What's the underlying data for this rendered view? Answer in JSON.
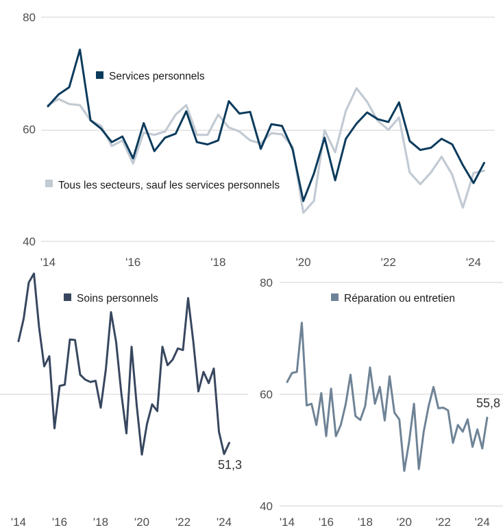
{
  "colors": {
    "services": "#0b3b5c",
    "autres": "#c2cad3",
    "soins": "#38475f",
    "reparation": "#6f8396",
    "grid": "#d0d0d0"
  },
  "chart_data": [
    {
      "type": "line",
      "x_ticks": [
        "'14",
        "'16",
        "'18",
        "'20",
        "'22",
        "'24"
      ],
      "y_ticks": [
        "80",
        "60",
        "40"
      ],
      "ylim": [
        40,
        80
      ],
      "xlim": [
        2014.0,
        2024.5
      ],
      "grid": "horizontal",
      "series": [
        {
          "name": "Services personnels",
          "color_key": "services",
          "x": [
            2014.0,
            2014.25,
            2014.5,
            2014.75,
            2015.0,
            2015.25,
            2015.5,
            2015.75,
            2016.0,
            2016.25,
            2016.5,
            2016.75,
            2017.0,
            2017.25,
            2017.5,
            2017.75,
            2018.0,
            2018.25,
            2018.5,
            2018.75,
            2019.0,
            2019.25,
            2019.5,
            2019.75,
            2020.0,
            2020.25,
            2020.5,
            2020.75,
            2021.0,
            2021.25,
            2021.5,
            2021.75,
            2022.0,
            2022.25,
            2022.5,
            2022.75,
            2023.0,
            2023.25,
            2023.5,
            2023.75,
            2024.0,
            2024.25
          ],
          "values": [
            64.1,
            66.2,
            67.5,
            74.2,
            61.6,
            60.1,
            57.7,
            58.7,
            54.8,
            61.1,
            56.1,
            58.5,
            59.2,
            63.2,
            57.7,
            57.3,
            58.0,
            65.0,
            62.8,
            63.1,
            56.5,
            60.9,
            60.6,
            56.4,
            47.2,
            52.1,
            58.5,
            50.9,
            58.3,
            61.0,
            63.0,
            61.8,
            61.3,
            64.8,
            57.9,
            56.3,
            56.7,
            58.3,
            57.3,
            53.6,
            50.4,
            54.0
          ]
        },
        {
          "name": "Tous les secteurs, sauf les services personnels",
          "color_key": "autres",
          "x": [
            2014.0,
            2014.25,
            2014.5,
            2014.75,
            2015.0,
            2015.25,
            2015.5,
            2015.75,
            2016.0,
            2016.25,
            2016.5,
            2016.75,
            2017.0,
            2017.25,
            2017.5,
            2017.75,
            2018.0,
            2018.25,
            2018.5,
            2018.75,
            2019.0,
            2019.25,
            2019.5,
            2019.75,
            2020.0,
            2020.25,
            2020.5,
            2020.75,
            2021.0,
            2021.25,
            2021.5,
            2021.75,
            2022.0,
            2022.25,
            2022.5,
            2022.75,
            2023.0,
            2023.25,
            2023.5,
            2023.75,
            2024.0,
            2024.25
          ],
          "values": [
            64.3,
            65.4,
            64.5,
            64.3,
            61.6,
            60.6,
            57.0,
            58.0,
            53.9,
            59.4,
            59.0,
            59.6,
            62.6,
            64.3,
            59.0,
            59.0,
            62.6,
            60.3,
            59.6,
            58.0,
            57.5,
            59.3,
            59.1,
            56.9,
            45.1,
            47.2,
            59.8,
            55.9,
            63.3,
            67.3,
            64.9,
            61.5,
            59.9,
            62.1,
            52.3,
            50.2,
            52.3,
            55.1,
            51.9,
            46.0,
            52.2,
            52.6
          ]
        }
      ]
    },
    {
      "type": "line",
      "x_ticks": [
        "'14",
        "'16",
        "'18",
        "'20",
        "'22",
        "'24"
      ],
      "ylim": [
        40,
        80
      ],
      "xlim": [
        2014.0,
        2024.5
      ],
      "grid": "horizontal",
      "end_label": "51,3",
      "series": [
        {
          "name": "Soins personnels",
          "color_key": "soins",
          "x": [
            2014.0,
            2014.25,
            2014.5,
            2014.75,
            2015.0,
            2015.25,
            2015.5,
            2015.75,
            2016.0,
            2016.25,
            2016.5,
            2016.75,
            2017.0,
            2017.25,
            2017.5,
            2017.75,
            2018.0,
            2018.25,
            2018.5,
            2018.75,
            2019.0,
            2019.25,
            2019.5,
            2019.75,
            2020.0,
            2020.25,
            2020.5,
            2020.75,
            2021.0,
            2021.25,
            2021.5,
            2021.75,
            2022.0,
            2022.25,
            2022.5,
            2022.75,
            2023.0,
            2023.25,
            2023.5,
            2023.75,
            2024.0,
            2024.25
          ],
          "values": [
            69.5,
            73.5,
            80.0,
            81.6,
            72.0,
            65.0,
            66.8,
            53.9,
            61.5,
            61.7,
            69.8,
            69.7,
            63.5,
            62.6,
            62.2,
            62.4,
            57.6,
            64.5,
            74.7,
            69.3,
            60.2,
            53.0,
            68.5,
            58.0,
            49.2,
            54.7,
            58.2,
            57.0,
            68.5,
            65.2,
            66.2,
            68.2,
            67.9,
            77.2,
            69.5,
            60.5,
            64.0,
            62.0,
            64.6,
            53.3,
            49.3,
            51.3
          ]
        }
      ]
    },
    {
      "type": "line",
      "x_ticks": [
        "'14",
        "'16",
        "'18",
        "'20",
        "'22",
        "'24"
      ],
      "y_ticks": [
        "80",
        "60",
        "40"
      ],
      "ylim": [
        40,
        80
      ],
      "xlim": [
        2014.0,
        2024.5
      ],
      "grid": "horizontal",
      "end_label": "55,8",
      "series": [
        {
          "name": "Réparation ou entretien",
          "color_key": "reparation",
          "x": [
            2014.0,
            2014.25,
            2014.5,
            2014.75,
            2015.0,
            2015.25,
            2015.5,
            2015.75,
            2016.0,
            2016.25,
            2016.5,
            2016.75,
            2017.0,
            2017.25,
            2017.5,
            2017.75,
            2018.0,
            2018.25,
            2018.5,
            2018.75,
            2019.0,
            2019.25,
            2019.5,
            2019.75,
            2020.0,
            2020.25,
            2020.5,
            2020.75,
            2021.0,
            2021.25,
            2021.5,
            2021.75,
            2022.0,
            2022.25,
            2022.5,
            2022.75,
            2023.0,
            2023.25,
            2023.5,
            2023.75,
            2024.0,
            2024.25
          ],
          "values": [
            62.2,
            63.8,
            64.0,
            72.8,
            58.0,
            58.3,
            54.5,
            60.2,
            52.5,
            61.0,
            52.5,
            54.5,
            58.2,
            63.5,
            56.1,
            55.4,
            57.9,
            64.8,
            58.3,
            61.3,
            55.3,
            63.2,
            56.7,
            55.5,
            46.3,
            51.5,
            58.3,
            46.6,
            53.3,
            57.9,
            61.3,
            57.5,
            57.6,
            57.1,
            51.3,
            54.5,
            53.3,
            55.5,
            50.6,
            53.7,
            50.3,
            55.8
          ]
        }
      ]
    }
  ]
}
